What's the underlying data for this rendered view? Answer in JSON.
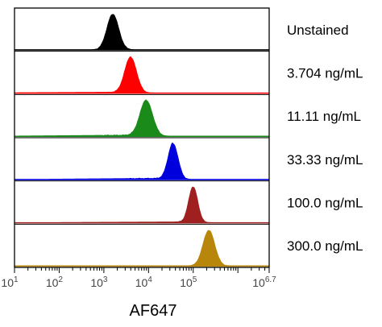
{
  "chart_data": {
    "type": "area",
    "title": "",
    "xlabel": "AF647",
    "ylabel": "",
    "x_scale": "log10",
    "xlim": [
      1,
      6.7
    ],
    "x_ticks": [
      {
        "value": 1,
        "base": "10",
        "exp": "1"
      },
      {
        "value": 2,
        "base": "10",
        "exp": "2"
      },
      {
        "value": 3,
        "base": "10",
        "exp": "3"
      },
      {
        "value": 4,
        "base": "10",
        "exp": "4"
      },
      {
        "value": 5,
        "base": "10",
        "exp": "5"
      },
      {
        "value": 6.7,
        "base": "10",
        "exp": "6.7"
      }
    ],
    "grid": false,
    "legend": "none",
    "series": [
      {
        "name": "Unstained",
        "color": "#000000",
        "peak_log10": 3.2,
        "width": 0.13,
        "tail": 0.0
      },
      {
        "name": "3.704 ng/mL",
        "color": "#ff0000",
        "peak_log10": 3.6,
        "width": 0.13,
        "tail": 0.02
      },
      {
        "name": "11.11 ng/mL",
        "color": "#1a8a1a",
        "peak_log10": 3.95,
        "width": 0.14,
        "tail": 0.03
      },
      {
        "name": "33.33 ng/mL",
        "color": "#0000dd",
        "peak_log10": 4.55,
        "width": 0.11,
        "tail": 0.03
      },
      {
        "name": "100.0 ng/mL",
        "color": "#a02020",
        "peak_log10": 5.0,
        "width": 0.1,
        "tail": 0.02
      },
      {
        "name": "300.0 ng/mL",
        "color": "#b8860b",
        "peak_log10": 5.35,
        "width": 0.13,
        "tail": 0.0
      }
    ]
  }
}
